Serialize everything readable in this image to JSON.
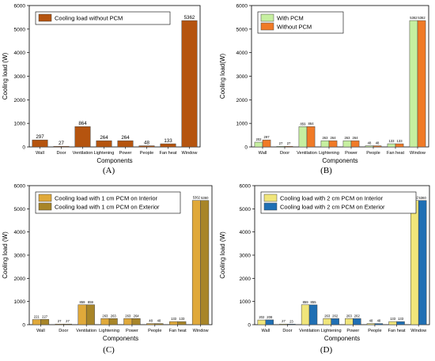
{
  "chart_data": [
    {
      "type": "bar",
      "panel_label": "(A)",
      "xlabel": "Components",
      "ylabel": "Cooling load (W)",
      "ylim": [
        0,
        6000
      ],
      "yticks": [
        0,
        1000,
        2000,
        3000,
        4000,
        5000,
        6000
      ],
      "categories": [
        "Wall",
        "Door",
        "Ventilation",
        "Lightening",
        "Power",
        "People",
        "Fan heat",
        "Window"
      ],
      "legend_position": "top-left",
      "series": [
        {
          "name": "Cooling load without PCM",
          "color": "#B5540F",
          "values": [
            297,
            27,
            864,
            264,
            264,
            48,
            133,
            5362
          ]
        }
      ]
    },
    {
      "type": "bar",
      "panel_label": "(B)",
      "xlabel": "Components",
      "ylabel": "Cooling load(W)",
      "ylim": [
        0,
        6000
      ],
      "yticks": [
        0,
        1000,
        2000,
        3000,
        4000,
        5000,
        6000
      ],
      "categories": [
        "Wall",
        "Door",
        "Ventilation",
        "Lightening",
        "Power",
        "People",
        "Fan heat",
        "Window"
      ],
      "legend_position": "top-left",
      "series": [
        {
          "name": "With PCM",
          "color": "#C6EFA0",
          "values": [
            202,
            27,
            859,
            263,
            263,
            48,
            133,
            5362
          ]
        },
        {
          "name": "Without PCM",
          "color": "#F07A27",
          "values": [
            297,
            27,
            864,
            264,
            264,
            48,
            133,
            5362
          ]
        }
      ]
    },
    {
      "type": "bar",
      "panel_label": "(C)",
      "xlabel": "Components",
      "ylabel": "Cooling load (W)",
      "ylim": [
        0,
        6000
      ],
      "yticks": [
        0,
        1000,
        2000,
        3000,
        4000,
        5000,
        6000
      ],
      "categories": [
        "Wall",
        "Door",
        "Ventilation",
        "Lightening",
        "Power",
        "People",
        "Fan heat",
        "Window"
      ],
      "legend_position": "top-left",
      "series": [
        {
          "name": "Cooling load with 1 cm PCM on Interior",
          "color": "#E0A93A",
          "values": [
            221,
            27,
            859,
            263,
            263,
            48,
            133,
            5362
          ]
        },
        {
          "name": "Cooling load with 1 cm PCM on Exterior",
          "color": "#A88528",
          "values": [
            227,
            27,
            859,
            263,
            264,
            48,
            133,
            5360
          ]
        }
      ]
    },
    {
      "type": "bar",
      "panel_label": "(D)",
      "xlabel": "Components",
      "ylabel": "Cooling load (W)",
      "ylim": [
        0,
        6000
      ],
      "yticks": [
        0,
        1000,
        2000,
        3000,
        4000,
        5000,
        6000
      ],
      "categories": [
        "Wall",
        "Door",
        "Ventilation",
        "Lightening",
        "Power",
        "People",
        "Fan heat",
        "Window"
      ],
      "legend_position": "top-left",
      "series": [
        {
          "name": "Cooling load with 2 cm PCM on Interior",
          "color": "#F0E57A",
          "values": [
            202,
            27,
            859,
            263,
            263,
            48,
            133,
            5362
          ]
        },
        {
          "name": "Cooling load with 2 cm PCM on Exterior",
          "color": "#1F6FB4",
          "values": [
            208,
            23,
            855,
            262,
            262,
            48,
            133,
            5360
          ]
        }
      ]
    }
  ]
}
